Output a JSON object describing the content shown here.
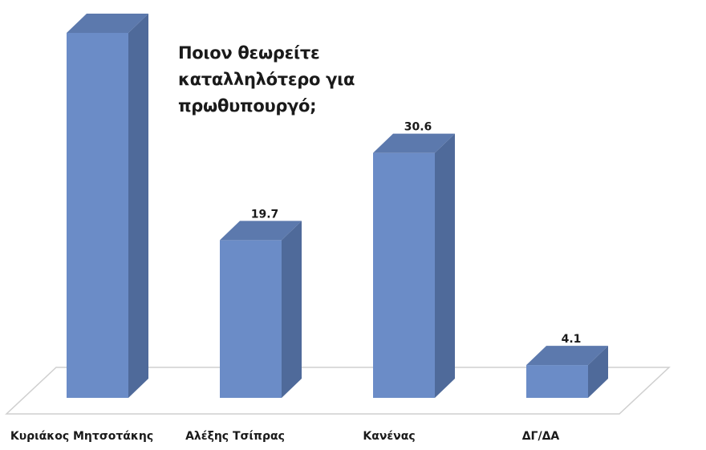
{
  "chart_data": {
    "type": "bar",
    "title_lines": [
      "Ποιον θεωρείτε",
      "καταλληλότερο για",
      "πρωθυπουργό;"
    ],
    "categories": [
      "Κυριάκος Μητσοτάκης",
      "Αλέξης Τσίπρας",
      "Κανένας",
      "ΔΓ/ΔΑ"
    ],
    "values": [
      45.6,
      19.7,
      30.6,
      4.1
    ],
    "data_labels": [
      "",
      "19.7",
      "30.6",
      "4.1"
    ],
    "grid": false,
    "legend": "none",
    "bar_color": "#6b8cc7",
    "bar_side_color": "#4f6a9a",
    "bar_top_color": "#5c79ad"
  }
}
